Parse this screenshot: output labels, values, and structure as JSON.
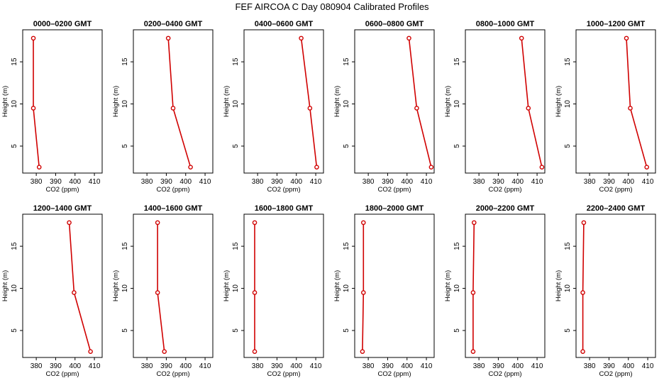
{
  "chart_data": {
    "type": "line",
    "title": "FEF AIRCOA C  Day 080904  Calibrated Profiles",
    "xlabel": "CO2 (ppm)",
    "ylabel": "Height (m)",
    "xlim": [
      373,
      414
    ],
    "ylim": [
      1.8,
      18.8
    ],
    "x_ticks": [
      380,
      390,
      400,
      410
    ],
    "y_ticks": [
      5,
      10,
      15
    ],
    "heights": [
      2.5,
      9.5,
      17.8
    ],
    "panels": [
      {
        "title": "0000–0200 GMT",
        "co2": [
          381.5,
          378.5,
          378.5
        ]
      },
      {
        "title": "0200–0400 GMT",
        "co2": [
          402.5,
          393.5,
          391.0
        ]
      },
      {
        "title": "0400–0600 GMT",
        "co2": [
          410.5,
          407.0,
          402.5
        ]
      },
      {
        "title": "0600–0800 GMT",
        "co2": [
          412.5,
          405.0,
          401.0
        ]
      },
      {
        "title": "0800–1000 GMT",
        "co2": [
          412.5,
          405.5,
          402.0
        ]
      },
      {
        "title": "1000–1200 GMT",
        "co2": [
          409.5,
          401.0,
          399.0
        ]
      },
      {
        "title": "1200–1400 GMT",
        "co2": [
          408.0,
          399.5,
          397.0
        ]
      },
      {
        "title": "1400–1600 GMT",
        "co2": [
          389.0,
          385.5,
          385.5
        ]
      },
      {
        "title": "1600–1800 GMT",
        "co2": [
          378.5,
          378.5,
          378.5
        ]
      },
      {
        "title": "1800–2000 GMT",
        "co2": [
          377.0,
          377.5,
          377.5
        ]
      },
      {
        "title": "2000–2200 GMT",
        "co2": [
          377.0,
          377.0,
          377.5
        ]
      },
      {
        "title": "2200–2400 GMT",
        "co2": [
          376.5,
          376.5,
          377.0
        ]
      }
    ]
  }
}
